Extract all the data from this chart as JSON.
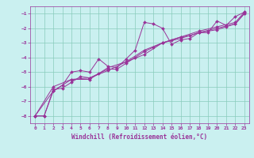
{
  "title": "",
  "xlabel": "Windchill (Refroidissement éolien,°C)",
  "ylabel": "",
  "bg_color": "#caf0f0",
  "grid_color": "#88ccbb",
  "line_color": "#993399",
  "xlim": [
    -0.5,
    23.5
  ],
  "ylim": [
    -8.5,
    -0.5
  ],
  "xticks": [
    0,
    1,
    2,
    3,
    4,
    5,
    6,
    7,
    8,
    9,
    10,
    11,
    12,
    13,
    14,
    15,
    16,
    17,
    18,
    19,
    20,
    21,
    22,
    23
  ],
  "yticks": [
    -8,
    -7,
    -6,
    -5,
    -4,
    -3,
    -2,
    -1
  ],
  "series": [
    [
      0,
      -8.0
    ],
    [
      1,
      -8.0
    ],
    [
      2,
      -6.3
    ],
    [
      3,
      -5.9
    ],
    [
      4,
      -5.0
    ],
    [
      5,
      -4.9
    ],
    [
      6,
      -5.0
    ],
    [
      7,
      -4.1
    ],
    [
      8,
      -4.6
    ],
    [
      9,
      -4.7
    ],
    [
      10,
      -4.1
    ],
    [
      11,
      -3.5
    ],
    [
      12,
      -1.6
    ],
    [
      13,
      -1.7
    ],
    [
      14,
      -2.0
    ],
    [
      15,
      -3.1
    ],
    [
      16,
      -2.8
    ],
    [
      17,
      -2.7
    ],
    [
      18,
      -2.3
    ],
    [
      19,
      -2.3
    ],
    [
      20,
      -1.5
    ],
    [
      21,
      -1.8
    ],
    [
      22,
      -1.2
    ],
    [
      23,
      -0.9
    ]
  ],
  "series2": [
    [
      0,
      -8.0
    ],
    [
      1,
      -8.0
    ],
    [
      2,
      -6.2
    ],
    [
      3,
      -6.1
    ],
    [
      4,
      -5.7
    ],
    [
      5,
      -5.3
    ],
    [
      6,
      -5.4
    ],
    [
      7,
      -5.1
    ],
    [
      8,
      -4.8
    ],
    [
      9,
      -4.8
    ],
    [
      10,
      -4.4
    ],
    [
      11,
      -4.0
    ],
    [
      12,
      -3.6
    ],
    [
      13,
      -3.3
    ],
    [
      14,
      -3.0
    ],
    [
      15,
      -2.8
    ],
    [
      16,
      -2.6
    ],
    [
      17,
      -2.5
    ],
    [
      18,
      -2.3
    ],
    [
      19,
      -2.2
    ],
    [
      20,
      -2.1
    ],
    [
      21,
      -1.9
    ],
    [
      22,
      -1.7
    ],
    [
      23,
      -1.0
    ]
  ],
  "series3": [
    [
      0,
      -8.0
    ],
    [
      2,
      -6.0
    ],
    [
      4,
      -5.5
    ],
    [
      6,
      -5.4
    ],
    [
      8,
      -4.9
    ],
    [
      10,
      -4.3
    ],
    [
      12,
      -3.8
    ],
    [
      14,
      -3.0
    ],
    [
      16,
      -2.6
    ],
    [
      18,
      -2.2
    ],
    [
      20,
      -1.9
    ],
    [
      22,
      -1.6
    ],
    [
      23,
      -0.9
    ]
  ],
  "series4": [
    [
      0,
      -8.0
    ],
    [
      2,
      -6.3
    ],
    [
      4,
      -5.5
    ],
    [
      6,
      -5.5
    ],
    [
      8,
      -4.7
    ],
    [
      10,
      -4.3
    ],
    [
      12,
      -3.5
    ],
    [
      14,
      -3.0
    ],
    [
      16,
      -2.7
    ],
    [
      18,
      -2.3
    ],
    [
      20,
      -2.0
    ],
    [
      22,
      -1.7
    ],
    [
      23,
      -1.0
    ]
  ]
}
